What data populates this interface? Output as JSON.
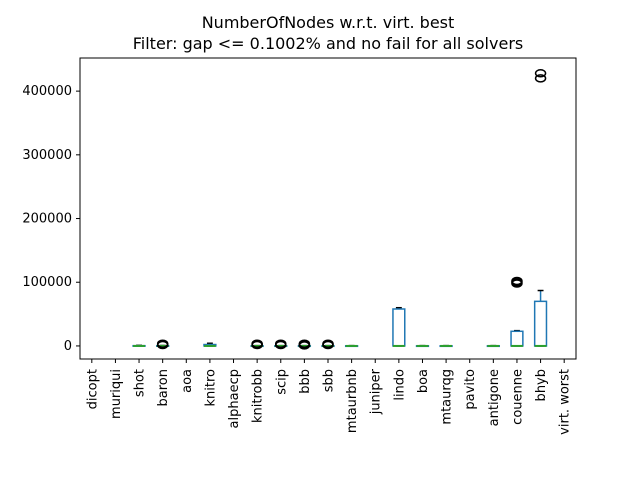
{
  "chart_data": {
    "type": "box",
    "title": "NumberOfNodes w.r.t. virt. best",
    "subtitle": "Filter: gap <= 0.1002% and no fail for all solvers",
    "xlabel": "",
    "ylabel": "",
    "ylim": [
      -20500,
      452000
    ],
    "yticks": [
      0,
      100000,
      200000,
      300000,
      400000
    ],
    "ytick_labels": [
      "0",
      "100000",
      "200000",
      "300000",
      "400000"
    ],
    "grid": false,
    "colors": {
      "box": "#1f77b4",
      "median": "#2ca02c",
      "whisker": "#000000",
      "outlier": "#000000"
    },
    "categories": [
      "dicopt",
      "muriqui",
      "shot",
      "baron",
      "aoa",
      "knitro",
      "alphaecp",
      "knitrobb",
      "scip",
      "bbb",
      "sbb",
      "mtaurbnb",
      "juniper",
      "lindo",
      "boa",
      "mtaurqg",
      "pavito",
      "antigone",
      "couenne",
      "bhyb",
      "virt. worst"
    ],
    "boxes": [
      null,
      null,
      {
        "min": 0,
        "q1": 0,
        "median": 0,
        "q3": 400,
        "max": 900,
        "outliers": []
      },
      {
        "min": 0,
        "q1": 0,
        "median": 0,
        "q3": 300,
        "max": 700,
        "outliers": [
          1500,
          2500,
          3500
        ]
      },
      null,
      {
        "min": 0,
        "q1": 0,
        "median": 0,
        "q3": 2200,
        "max": 4200,
        "outliers": []
      },
      null,
      {
        "min": 0,
        "q1": 0,
        "median": 0,
        "q3": 200,
        "max": 500,
        "outliers": [
          1500,
          2500,
          3500
        ]
      },
      {
        "min": 0,
        "q1": 0,
        "median": 0,
        "q3": 200,
        "max": 500,
        "outliers": [
          1500,
          2500,
          3500
        ]
      },
      {
        "min": 0,
        "q1": 0,
        "median": 0,
        "q3": 200,
        "max": 500,
        "outliers": [
          800,
          1500,
          2500,
          3500
        ]
      },
      {
        "min": 0,
        "q1": 0,
        "median": 0,
        "q3": 200,
        "max": 500,
        "outliers": [
          1500,
          2500,
          3500
        ]
      },
      {
        "min": 0,
        "q1": 0,
        "median": 0,
        "q3": 200,
        "max": 500,
        "outliers": []
      },
      null,
      {
        "min": 0,
        "q1": 0,
        "median": 0,
        "q3": 58000,
        "max": 60000,
        "outliers": []
      },
      {
        "min": 0,
        "q1": 0,
        "median": 0,
        "q3": 200,
        "max": 500,
        "outliers": []
      },
      {
        "min": 0,
        "q1": 0,
        "median": 0,
        "q3": 200,
        "max": 500,
        "outliers": []
      },
      null,
      {
        "min": 0,
        "q1": 0,
        "median": 0,
        "q3": 200,
        "max": 500,
        "outliers": []
      },
      {
        "min": 0,
        "q1": 0,
        "median": 0,
        "q3": 23000,
        "max": 24000,
        "outliers": [
          98000,
          100000,
          102000
        ]
      },
      {
        "min": 0,
        "q1": 0,
        "median": 0,
        "q3": 70000,
        "max": 87000,
        "outliers": [
          420000,
          428000
        ]
      },
      null
    ]
  }
}
